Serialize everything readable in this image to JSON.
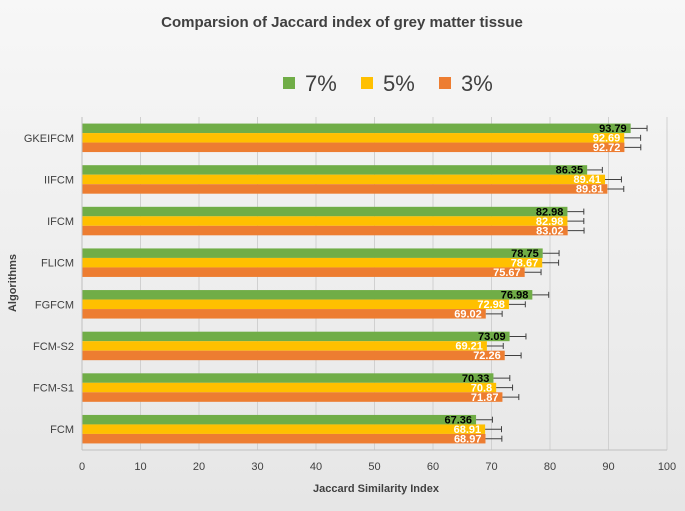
{
  "chart_data": {
    "type": "bar",
    "orientation": "horizontal",
    "title": "Comparsion of Jaccard index  of grey matter tissue",
    "xlabel": "Jaccard Similarity Index",
    "ylabel": "Algorithms",
    "xlim": [
      0,
      100
    ],
    "xticks": [
      0,
      10,
      20,
      30,
      40,
      50,
      60,
      70,
      80,
      90,
      100
    ],
    "grid": true,
    "legend_position": "top",
    "categories": [
      "GKEIFCM",
      "IIFCM",
      "IFCM",
      "FLICM",
      "FGFCM",
      "FCM-S2",
      "FCM-S1",
      "FCM"
    ],
    "series": [
      {
        "name": "7%",
        "color": "#70ad47",
        "label_color": "#000000",
        "values": [
          93.79,
          86.35,
          82.98,
          78.75,
          76.98,
          73.09,
          70.33,
          67.36
        ],
        "errors": [
          2.8,
          2.6,
          2.8,
          2.8,
          2.8,
          2.8,
          2.8,
          2.8
        ]
      },
      {
        "name": "5%",
        "color": "#ffc000",
        "label_color": "#ffffff",
        "values": [
          92.69,
          89.41,
          82.98,
          78.67,
          72.98,
          69.21,
          70.8,
          68.91
        ],
        "errors": [
          2.8,
          2.8,
          2.8,
          2.8,
          2.8,
          2.8,
          2.8,
          2.8
        ]
      },
      {
        "name": "3%",
        "color": "#ed7d31",
        "label_color": "#ffffff",
        "values": [
          92.72,
          89.81,
          83.02,
          75.67,
          69.02,
          72.26,
          71.87,
          68.97
        ],
        "errors": [
          2.8,
          2.8,
          2.8,
          2.8,
          2.8,
          2.8,
          2.8,
          2.8
        ]
      }
    ],
    "errorbar_color": "#404040",
    "gridline_color": "#d0d0d0",
    "axis_color": "#bfbfbf"
  }
}
